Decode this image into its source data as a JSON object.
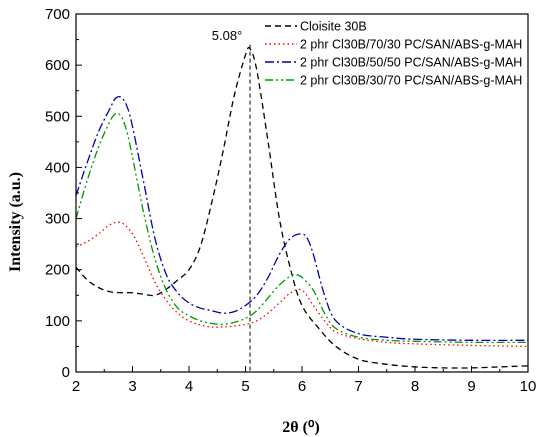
{
  "chart_data": {
    "type": "line",
    "xlabel": "2θ (⁰)",
    "ylabel": "Intensity (a.u.)",
    "xlim": [
      2,
      10
    ],
    "ylim": [
      0,
      700
    ],
    "xticks": [
      2,
      3,
      4,
      5,
      6,
      7,
      8,
      9,
      10
    ],
    "yticks": [
      0,
      100,
      200,
      300,
      400,
      500,
      600,
      700
    ],
    "legend_position": "top-right",
    "annotation": {
      "text": "5.08°",
      "x": 5.08
    },
    "series": [
      {
        "name": "Cloisite 30B",
        "color": "#000000",
        "dash": "dashed",
        "x": [
          2,
          2.2,
          2.4,
          2.6,
          2.8,
          3.0,
          3.2,
          3.4,
          3.6,
          3.8,
          4.0,
          4.2,
          4.4,
          4.6,
          4.8,
          5.0,
          5.08,
          5.2,
          5.4,
          5.6,
          5.8,
          6.0,
          6.3,
          6.6,
          7.0,
          7.5,
          8.0,
          8.5,
          9.0,
          9.5,
          10.0
        ],
        "y": [
          205,
          180,
          165,
          157,
          155,
          155,
          152,
          150,
          162,
          180,
          200,
          245,
          330,
          430,
          540,
          620,
          632,
          590,
          450,
          300,
          200,
          130,
          85,
          50,
          25,
          15,
          10,
          8,
          8,
          10,
          12
        ]
      },
      {
        "name": "2 phr Cl30B/70/30 PC/SAN/ABS-g-MAH",
        "color": "#ff0000",
        "dash": "dotted",
        "x": [
          2,
          2.2,
          2.4,
          2.6,
          2.8,
          3.0,
          3.2,
          3.4,
          3.6,
          3.8,
          4.0,
          4.2,
          4.4,
          4.6,
          4.8,
          5.0,
          5.2,
          5.4,
          5.6,
          5.8,
          6.0,
          6.2,
          6.4,
          6.6,
          7.0,
          7.5,
          8.0,
          9.0,
          10.0
        ],
        "y": [
          245,
          255,
          270,
          288,
          292,
          270,
          225,
          175,
          140,
          115,
          100,
          92,
          88,
          88,
          90,
          93,
          100,
          115,
          135,
          155,
          160,
          130,
          100,
          78,
          65,
          58,
          55,
          52,
          50
        ]
      },
      {
        "name": "2 phr Cl30B/50/50 PC/SAN/ABS-g-MAH",
        "color": "#0000aa",
        "dash": "dashdot",
        "x": [
          2,
          2.2,
          2.4,
          2.6,
          2.7,
          2.8,
          2.9,
          3.0,
          3.2,
          3.4,
          3.6,
          3.8,
          4.0,
          4.2,
          4.4,
          4.6,
          4.8,
          5.0,
          5.2,
          5.4,
          5.6,
          5.8,
          6.0,
          6.1,
          6.2,
          6.4,
          6.6,
          7.0,
          7.5,
          8.0,
          9.0,
          10.0
        ],
        "y": [
          345,
          410,
          470,
          515,
          535,
          537,
          520,
          480,
          370,
          260,
          190,
          155,
          135,
          125,
          120,
          115,
          118,
          130,
          150,
          185,
          230,
          262,
          270,
          260,
          230,
          150,
          100,
          75,
          68,
          64,
          62,
          62
        ]
      },
      {
        "name": "2 phr Cl30B/30/70 PC/SAN/ABS-g-MAH",
        "color": "#009900",
        "dash": "dashdotdot",
        "x": [
          2,
          2.2,
          2.4,
          2.6,
          2.7,
          2.8,
          2.9,
          3.0,
          3.2,
          3.4,
          3.6,
          3.8,
          4.0,
          4.2,
          4.4,
          4.6,
          4.8,
          5.0,
          5.2,
          5.4,
          5.6,
          5.8,
          5.9,
          6.0,
          6.2,
          6.4,
          6.6,
          7.0,
          7.5,
          8.0,
          9.0,
          10.0
        ],
        "y": [
          300,
          375,
          440,
          490,
          505,
          500,
          470,
          420,
          310,
          220,
          160,
          125,
          110,
          100,
          95,
          93,
          97,
          105,
          120,
          145,
          170,
          188,
          190,
          185,
          160,
          115,
          85,
          68,
          62,
          60,
          58,
          58
        ]
      }
    ]
  }
}
